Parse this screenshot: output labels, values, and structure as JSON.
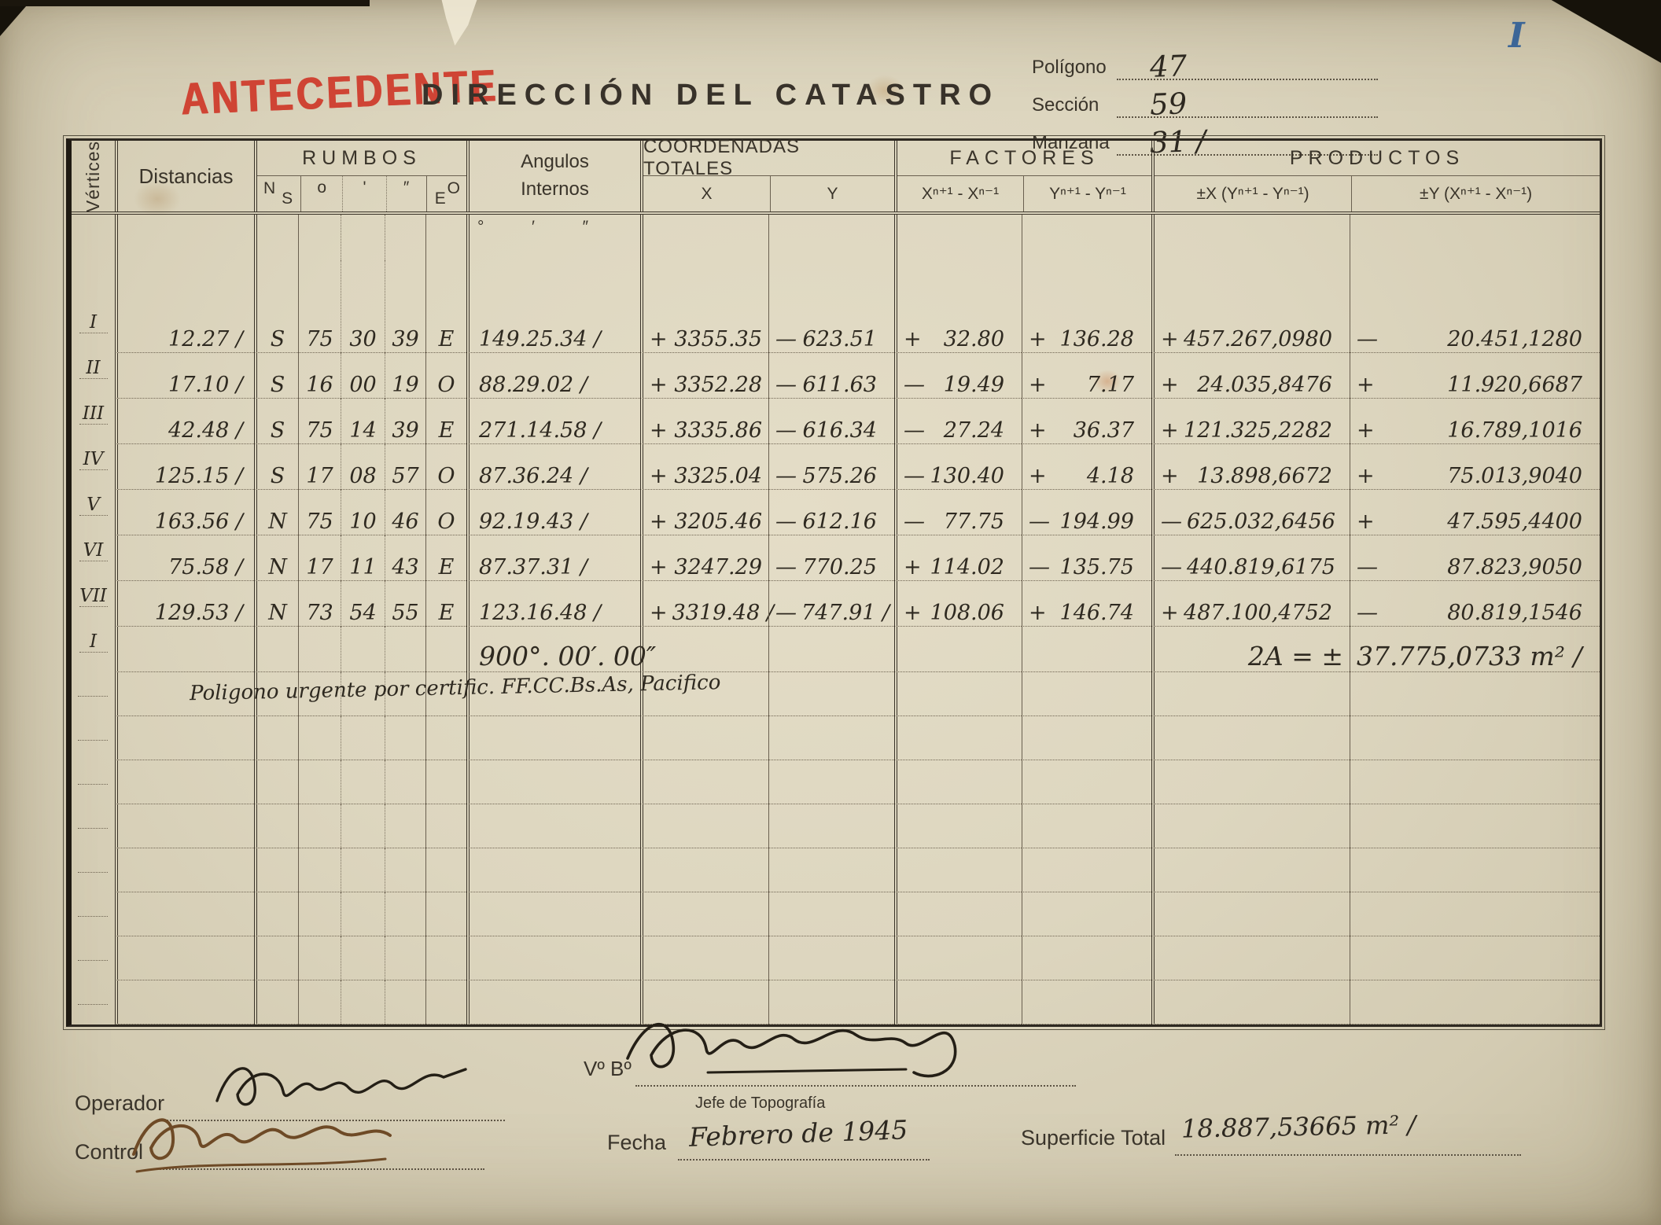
{
  "page": {
    "corner_mark": "I",
    "stamp": "ANTECEDENTE",
    "title": "DIRECCIÓN DEL CATASTRO",
    "ref_fields": [
      {
        "label": "Polígono",
        "value": "47"
      },
      {
        "label": "Sección",
        "value": "59"
      },
      {
        "label": "Manzana",
        "value": "31 ∕"
      }
    ]
  },
  "table": {
    "headers": {
      "vertices": "Vértices",
      "distancias": "Distancias",
      "rumbos": "RUMBOS",
      "ns_top": "N",
      "ns_bottom": "S",
      "deg": "o",
      "min": "'",
      "sec": "″",
      "oe_top": "O",
      "oe_bottom": "E",
      "angulos_line1": "Angulos",
      "angulos_line2": "Internos",
      "coordenadas": "COORDENADAS TOTALES",
      "x": "X",
      "y": "Y",
      "factores": "FACTORES",
      "factor_x": "Xⁿ⁺¹ - Xⁿ⁻¹",
      "factor_y": "Yⁿ⁺¹ - Yⁿ⁻¹",
      "productos": "PRODUCTOS",
      "producto_x": "±X (Yⁿ⁺¹ - Yⁿ⁻¹)",
      "producto_y": "±Y (Xⁿ⁺¹ - Xⁿ⁻¹)",
      "angle_units": [
        "°",
        "′",
        "″"
      ]
    },
    "rows": [
      {
        "v": "I",
        "dist": "12.27 ∕",
        "ns": "S",
        "deg": "75",
        "min": "30",
        "sec": "39",
        "oe": "E",
        "ang": "149.25.34 ∕",
        "xs": "+",
        "x": "3355.35",
        "ys": "—",
        "y": "623.51",
        "fxs": "+",
        "fx": "32.80",
        "fys": "+",
        "fy": "136.28",
        "pxs": "+",
        "px": "457.267,0980",
        "pys": "—",
        "py": "20.451,1280"
      },
      {
        "v": "II",
        "dist": "17.10 ∕",
        "ns": "S",
        "deg": "16",
        "min": "00",
        "sec": "19",
        "oe": "O",
        "ang": "88.29.02 ∕",
        "xs": "+",
        "x": "3352.28",
        "ys": "—",
        "y": "611.63",
        "fxs": "—",
        "fx": "19.49",
        "fys": "+",
        "fy": "7.17",
        "pxs": "+",
        "px": "24.035,8476",
        "pys": "+",
        "py": "11.920,6687"
      },
      {
        "v": "III",
        "dist": "42.48 ∕",
        "ns": "S",
        "deg": "75",
        "min": "14",
        "sec": "39",
        "oe": "E",
        "ang": "271.14.58 ∕",
        "xs": "+",
        "x": "3335.86",
        "ys": "—",
        "y": "616.34",
        "fxs": "—",
        "fx": "27.24",
        "fys": "+",
        "fy": "36.37",
        "pxs": "+",
        "px": "121.325,2282",
        "pys": "+",
        "py": "16.789,1016"
      },
      {
        "v": "IV",
        "dist": "125.15 ∕",
        "ns": "S",
        "deg": "17",
        "min": "08",
        "sec": "57",
        "oe": "O",
        "ang": "87.36.24 ∕",
        "xs": "+",
        "x": "3325.04",
        "ys": "—",
        "y": "575.26",
        "fxs": "—",
        "fx": "130.40",
        "fys": "+",
        "fy": "4.18",
        "pxs": "+",
        "px": "13.898,6672",
        "pys": "+",
        "py": "75.013,9040"
      },
      {
        "v": "V",
        "dist": "163.56 ∕",
        "ns": "N",
        "deg": "75",
        "min": "10",
        "sec": "46",
        "oe": "O",
        "ang": "92.19.43 ∕",
        "xs": "+",
        "x": "3205.46",
        "ys": "—",
        "y": "612.16",
        "fxs": "—",
        "fx": "77.75",
        "fys": "—",
        "fy": "194.99",
        "pxs": "—",
        "px": "625.032,6456",
        "pys": "+",
        "py": "47.595,4400"
      },
      {
        "v": "VI",
        "dist": "75.58 ∕",
        "ns": "N",
        "deg": "17",
        "min": "11",
        "sec": "43",
        "oe": "E",
        "ang": "87.37.31 ∕",
        "xs": "+",
        "x": "3247.29",
        "ys": "—",
        "y": "770.25",
        "fxs": "+",
        "fx": "114.02",
        "fys": "—",
        "fy": "135.75",
        "pxs": "—",
        "px": "440.819,6175",
        "pys": "—",
        "py": "87.823,9050"
      },
      {
        "v": "VII",
        "dist": "129.53 ∕",
        "ns": "N",
        "deg": "73",
        "min": "54",
        "sec": "55",
        "oe": "E",
        "ang": "123.16.48 ∕",
        "xs": "+",
        "x": "3319.48 ∕",
        "ys": "—",
        "y": "747.91 ∕",
        "fxs": "+",
        "fx": "108.06",
        "fys": "+",
        "fy": "146.74",
        "pxs": "+",
        "px": "487.100,4752",
        "pys": "—",
        "py": "80.819,1546"
      }
    ],
    "closing_row": {
      "v": "I",
      "ang": "900°. 00′. 00″",
      "area_label": "2A = ±",
      "area_value": "37.775,0733 m² ∕"
    },
    "note": "Poligono urgente por certific. FF.CC.Bs.As, Pacifico",
    "empty_rows": 8
  },
  "footer": {
    "operador_label": "Operador",
    "control_label": "Control",
    "vobo_label": "Vº Bº",
    "vobo_role": "Jefe de Topografía",
    "fecha_label": "Fecha",
    "fecha_value": "Febrero de 1945",
    "superficie_label": "Superficie Total",
    "superficie_value": "18.887,53665 m² ∕"
  }
}
